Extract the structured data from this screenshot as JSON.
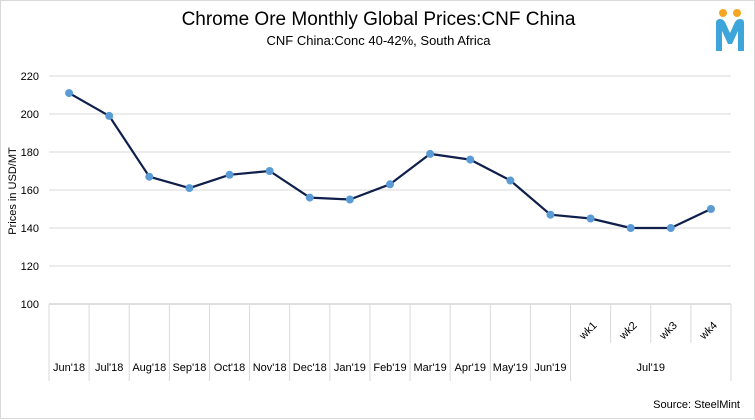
{
  "header": {
    "title": "Chrome Ore Monthly Global Prices:CNF China",
    "subtitle": "CNF China:Conc 40-42%,  South Africa"
  },
  "footer": {
    "source": "Source: SteelMint"
  },
  "logo": {
    "icon": "steelmint-logo-icon",
    "colors": {
      "dots": "#f5a623",
      "letter": "#3da5d9"
    }
  },
  "chart_data": {
    "type": "line",
    "title": "Chrome Ore Monthly Global Prices:CNF China",
    "subtitle": "CNF China:Conc 40-42%,  South Africa",
    "xlabel": "",
    "ylabel": "Prices in USD/MT",
    "ylim": [
      100,
      220
    ],
    "yticks": [
      100,
      120,
      140,
      160,
      180,
      200,
      220
    ],
    "grid": true,
    "categories": [
      "Jun'18",
      "Jul'18",
      "Aug'18",
      "Sep'18",
      "Oct'18",
      "Nov'18",
      "Dec'18",
      "Jan'19",
      "Feb'19",
      "Mar'19",
      "Apr'19",
      "May'19",
      "Jun'19",
      "wk1",
      "wk2",
      "wk3",
      "wk4"
    ],
    "group_label": {
      "label": "Jul'19",
      "categories": [
        "wk1",
        "wk2",
        "wk3",
        "wk4"
      ]
    },
    "series": [
      {
        "values": [
          211,
          199,
          167,
          161,
          168,
          170,
          156,
          155,
          163,
          179,
          176,
          165,
          147,
          145,
          140,
          140,
          150
        ],
        "line_color": "#0f1f4b",
        "marker_color": "#5b9bd5"
      }
    ]
  }
}
